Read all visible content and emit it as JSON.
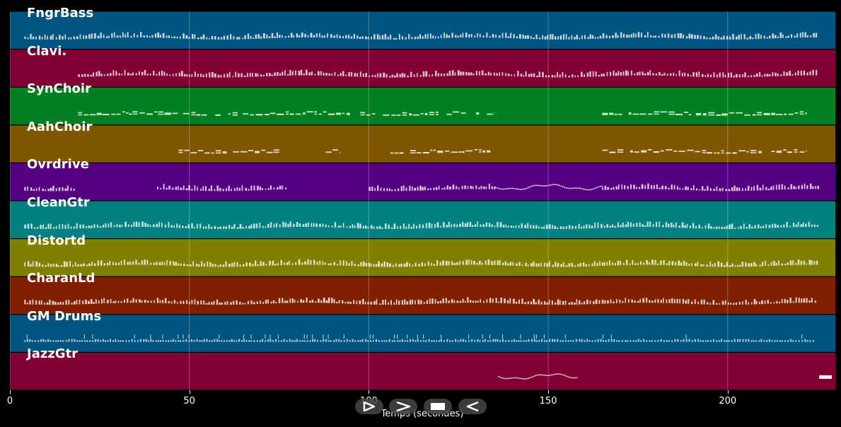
{
  "chart_data": {
    "type": "piano-roll",
    "xlabel": "Temps (secondes)",
    "xlim": [
      0,
      230
    ],
    "xticks": [
      0,
      50,
      100,
      150,
      200
    ],
    "grid": true,
    "tracks": [
      {
        "name": "FngrBass",
        "color": "#005580",
        "note_style": "pulse",
        "segments": [
          [
            4,
            225
          ]
        ]
      },
      {
        "name": "Clavi.",
        "color": "#800035",
        "note_style": "pulse",
        "segments": [
          [
            19,
            225
          ]
        ]
      },
      {
        "name": "SynChoir",
        "color": "#008020",
        "note_style": "chords",
        "segments": [
          [
            19,
            135
          ],
          [
            165,
            222
          ]
        ]
      },
      {
        "name": "AahChoir",
        "color": "#805500",
        "note_style": "chords",
        "segments": [
          [
            47,
            76
          ],
          [
            88,
            92
          ],
          [
            106,
            134
          ],
          [
            165,
            222
          ]
        ]
      },
      {
        "name": "Ovrdrive",
        "color": "#550080",
        "note_style": "pulse",
        "segments": [
          [
            4,
            18
          ],
          [
            41,
            77
          ],
          [
            100,
            135
          ],
          [
            165,
            225
          ]
        ],
        "melody_segments": [
          [
            135,
            165
          ]
        ]
      },
      {
        "name": "CleanGtr",
        "color": "#008080",
        "note_style": "pulse",
        "segments": [
          [
            4,
            225
          ]
        ]
      },
      {
        "name": "Distortd",
        "color": "#808000",
        "note_style": "pulse",
        "segments": [
          [
            4,
            225
          ]
        ]
      },
      {
        "name": "CharanLd",
        "color": "#802000",
        "note_style": "pulse",
        "segments": [
          [
            4,
            225
          ]
        ]
      },
      {
        "name": "GM Drums",
        "color": "#005580",
        "note_style": "drums",
        "segments": [
          [
            4,
            224
          ]
        ]
      },
      {
        "name": "JazzGtr",
        "color": "#800035",
        "note_style": "melody",
        "segments": [],
        "melody_segments": [
          [
            136,
            158
          ]
        ],
        "blocks": [
          [
            225.5,
            229
          ]
        ]
      }
    ]
  },
  "player_controls": [
    {
      "name": "play-icon",
      "label": "play"
    },
    {
      "name": "forward-icon",
      "label": "forward"
    },
    {
      "name": "stop-icon",
      "label": "stop"
    },
    {
      "name": "rewind-icon",
      "label": "rewind"
    }
  ]
}
